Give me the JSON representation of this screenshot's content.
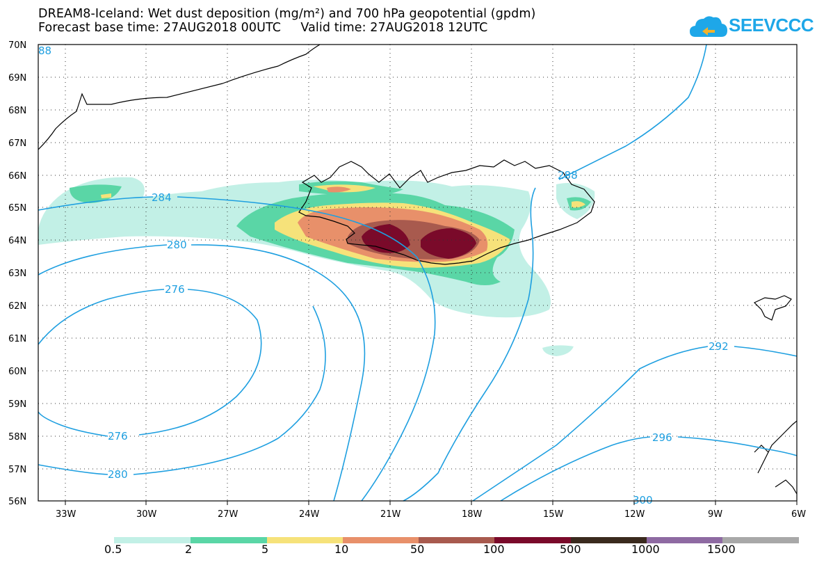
{
  "title_line1": "DREAM8-Iceland: Wet dust deposition (mg/m²) and 700 hPa geopotential (gpdm)",
  "title_line2": "Forecast base time: 27AUG2018 00UTC     Valid time: 27AUG2018 12UTC",
  "logo_text": "SEEVCCC",
  "lat_labels": [
    "70N",
    "69N",
    "68N",
    "67N",
    "66N",
    "65N",
    "64N",
    "63N",
    "62N",
    "61N",
    "60N",
    "59N",
    "58N",
    "57N",
    "56N"
  ],
  "lon_labels": [
    "33W",
    "30W",
    "27W",
    "24W",
    "21W",
    "18W",
    "15W",
    "12W",
    "9W",
    "6W"
  ],
  "contour_labels": [
    "284",
    "280",
    "276",
    "276",
    "280",
    "288",
    "292",
    "296",
    "300",
    "88"
  ],
  "legend": {
    "labels": [
      "0.5",
      "2",
      "5",
      "10",
      "50",
      "100",
      "500",
      "1000",
      "1500"
    ],
    "colors": [
      "#c2f0e6",
      "#5ad6a6",
      "#f6e27a",
      "#e8906a",
      "#a85a4e",
      "#7a0a2a",
      "#3a2a1e",
      "#8e6aa2",
      "#a8a8a8"
    ]
  },
  "colors": {
    "contour": "#1e9fe0",
    "accent": "#1ea7e8"
  }
}
